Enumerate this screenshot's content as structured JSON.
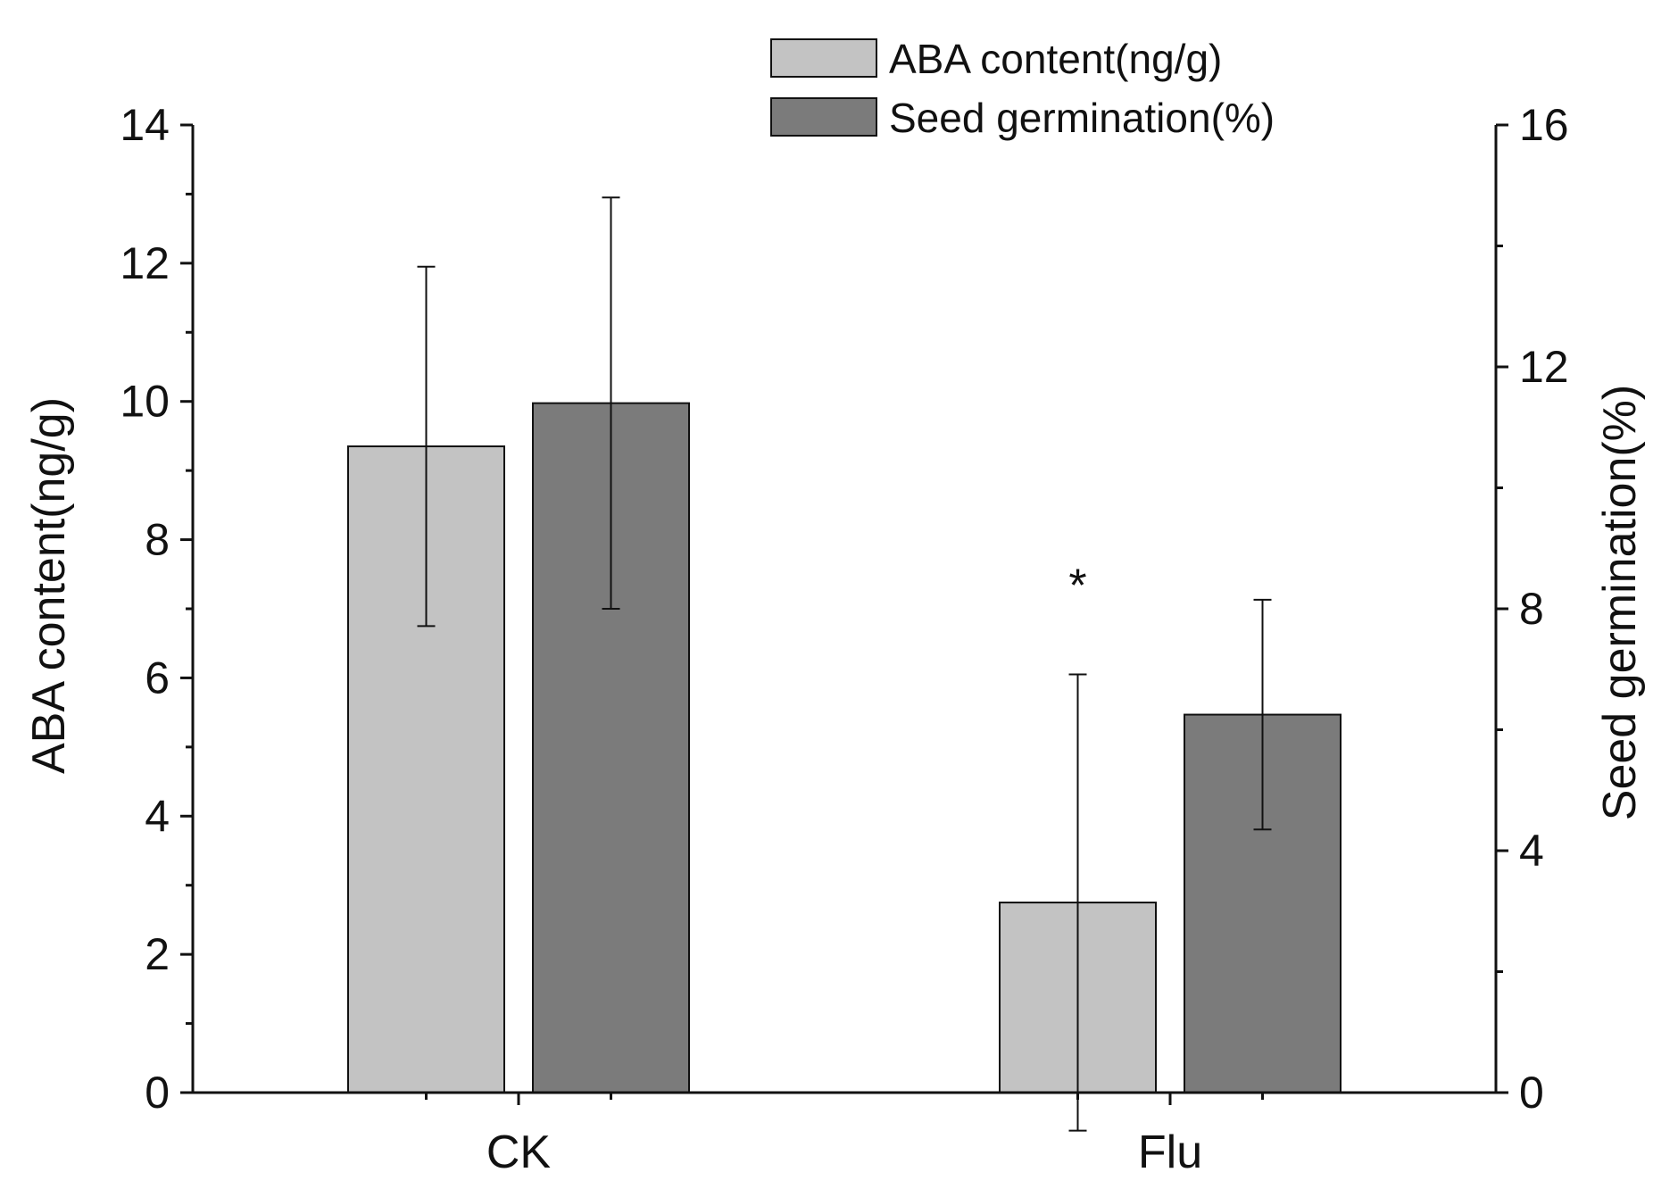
{
  "chart_data": {
    "type": "bar",
    "title": "",
    "categories": [
      "CK",
      "Flu"
    ],
    "xlabel": "",
    "ylabel": "ABA content(ng/g)",
    "ylabel_right": "Seed germination(%)",
    "ylim": [
      0,
      14
    ],
    "ylim_right": [
      0,
      16
    ],
    "yticks": [
      "0",
      "2",
      "4",
      "6",
      "8",
      "10",
      "12",
      "14"
    ],
    "yticks_right": [
      "0",
      "4",
      "8",
      "12",
      "16"
    ],
    "legend_position": "top",
    "series": [
      {
        "name": "ABA content(ng/g)",
        "axis": "left",
        "color": "#c3c3c3",
        "values": [
          9.35,
          2.75
        ],
        "errors": [
          2.6,
          3.3
        ]
      },
      {
        "name": "Seed germination(%)",
        "axis": "right",
        "color": "#7b7b7b",
        "values": [
          11.4,
          6.25
        ],
        "errors": [
          3.4,
          1.9
        ]
      }
    ],
    "annotations": [
      {
        "text": "*",
        "category": "Flu",
        "series": 0
      }
    ]
  }
}
